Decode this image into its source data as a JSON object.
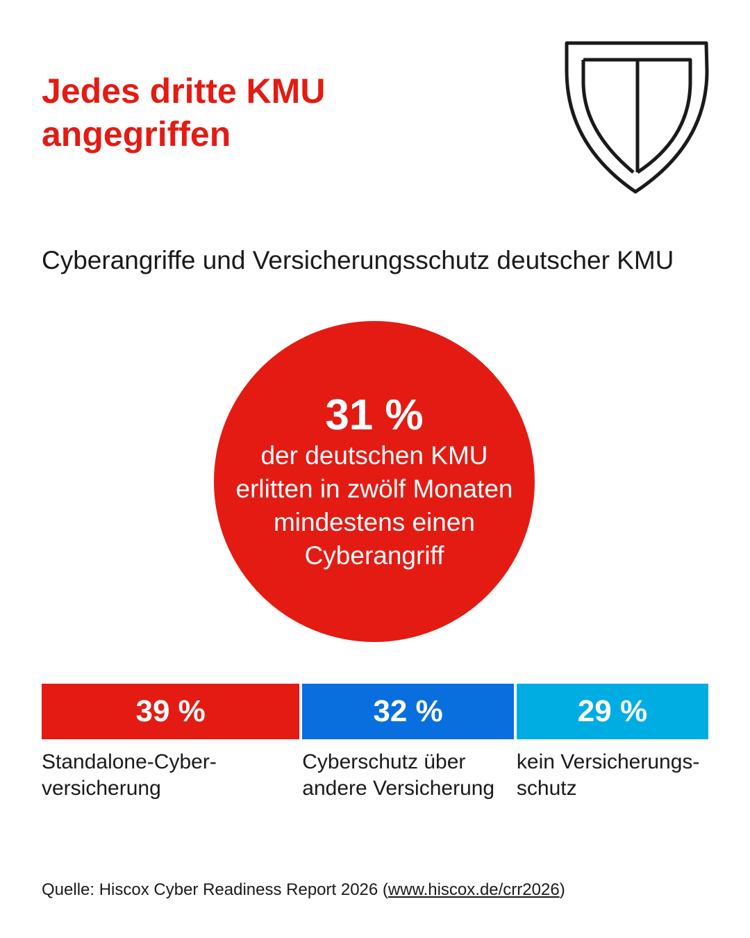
{
  "title": {
    "line1": "Jedes dritte KMU",
    "line2": "angegriffen"
  },
  "icons": {
    "logo": "shield-icon"
  },
  "subtitle": "Cyberangriffe und Versicherungsschutz deutscher KMU",
  "highlight": {
    "value_label": "31 %",
    "value": 31,
    "color": "#e41b13",
    "text": [
      "der deutschen KMU",
      "erlitten in zwölf Monaten",
      "mindestens einen",
      "Cyberangriff"
    ]
  },
  "chart_data": {
    "type": "bar",
    "orientation": "horizontal-stacked",
    "series": [
      {
        "label_lines": [
          "Standalone-Cyber-",
          "versicherung"
        ],
        "value": 39,
        "value_label": "39 %",
        "color": "#e41b13"
      },
      {
        "label_lines": [
          "Cyberschutz über",
          "andere Versicherung"
        ],
        "value": 32,
        "value_label": "32 %",
        "color": "#0a6fde"
      },
      {
        "label_lines": [
          "kein Versicherungs-",
          "schutz"
        ],
        "value": 29,
        "value_label": "29 %",
        "color": "#00ade3"
      }
    ]
  },
  "source": {
    "prefix": "Quelle: Hiscox Cyber Readiness Report 2026 (",
    "link": "www.hiscox.de/crr2026",
    "suffix": ")"
  }
}
